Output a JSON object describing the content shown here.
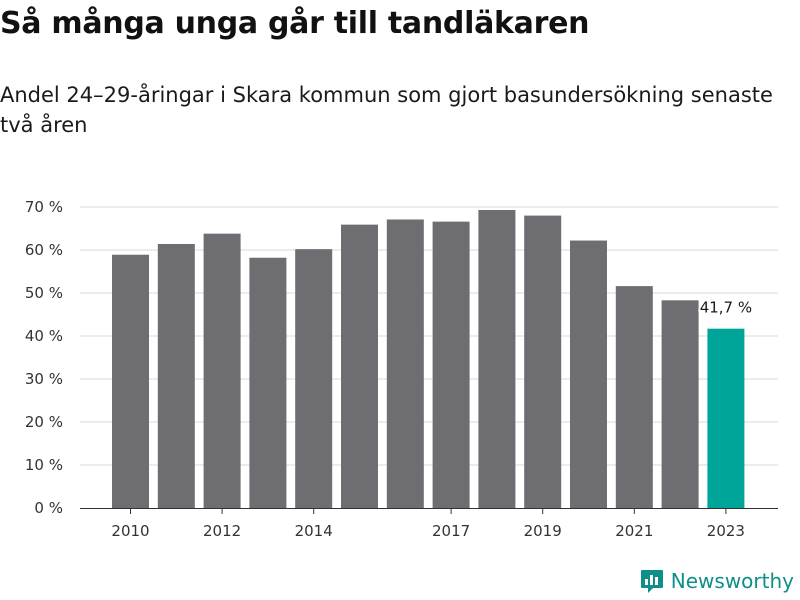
{
  "title": "Så många unga går till tandläkaren",
  "subtitle": "Andel 24–29-åringar i Skara kommun som gjort basundersökning senaste två åren",
  "brand": {
    "name": "Newsworthy",
    "logo_icon": "newsworthy-logo-icon",
    "color": "#0f8f8a"
  },
  "chart_data": {
    "type": "bar",
    "categories": [
      "2010",
      "2011",
      "2012",
      "2013",
      "2014",
      "2015",
      "2016",
      "2017",
      "2018",
      "2019",
      "2020",
      "2021",
      "2022",
      "2023"
    ],
    "values": [
      58.9,
      61.4,
      63.8,
      58.2,
      60.2,
      65.9,
      67.1,
      66.6,
      69.3,
      68.0,
      62.2,
      51.6,
      48.3,
      41.7
    ],
    "x_tick_labels": [
      "2010",
      "",
      "2012",
      "",
      "2014",
      "",
      "",
      "2017",
      "",
      "2019",
      "",
      "2021",
      "",
      "2023"
    ],
    "y_ticks": [
      0,
      10,
      20,
      30,
      40,
      50,
      60,
      70
    ],
    "y_tick_labels": [
      "0 %",
      "10 %",
      "20 %",
      "30 %",
      "40 %",
      "50 %",
      "60 %",
      "70 %"
    ],
    "ylim": [
      0,
      70
    ],
    "xlabel": "",
    "ylabel": "",
    "grid": true,
    "annotations": [
      {
        "category": "2023",
        "text": "41,7 %"
      }
    ],
    "colors": {
      "bar": "#6e6d72",
      "highlight": "#00a59a",
      "grid": "#d8d8d8",
      "axis": "#333333"
    },
    "highlight_category": "2023"
  }
}
